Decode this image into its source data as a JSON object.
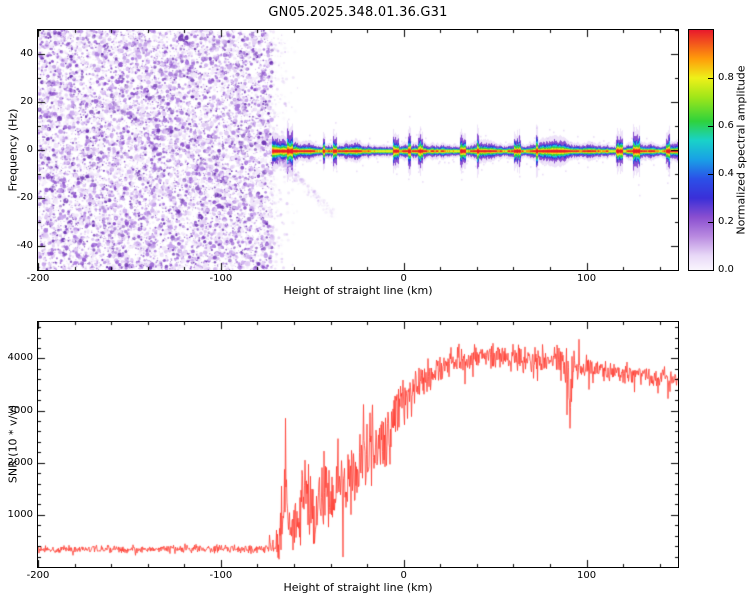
{
  "title": "GN05.2025.348.01.36.G31",
  "figure": {
    "background": "#ffffff",
    "line_color": "#ff3b30"
  },
  "chart_data": [
    {
      "type": "heatmap",
      "title": "",
      "xlabel": "Height of straight line (km)",
      "ylabel": "Frequency (Hz)",
      "xlim": [
        -200,
        150
      ],
      "ylim": [
        -50,
        50
      ],
      "xticks": [
        -200,
        -100,
        0,
        100
      ],
      "yticks": [
        -40,
        -20,
        0,
        20,
        40
      ],
      "xtick_minor": 20,
      "ytick_minor": 10,
      "grid": false,
      "noise_region": {
        "x_from_km": -200,
        "x_to_km": -72,
        "description": "dense purple speckle noise over full frequency range, no coherent signal",
        "colors": [
          "#f1e8fa",
          "#e0cbf4",
          "#c7a3ec",
          "#aa7ade",
          "#8d52cc",
          "#7038b4"
        ],
        "dot_count": 12000
      },
      "signal_band": {
        "x_start_km": -72,
        "center_freq_hz": -0.5,
        "description": "narrow horizontal carrier near 0 Hz from -72 km to 150 km; red core sheathed by orange/yellow/green/cyan/blue with purple fringe; fuzzier near onset and around 75 km; faint diagonal tail descending below the band",
        "layers": [
          {
            "name": "outer-fuzz",
            "color": "#c7a3ec",
            "halfwidth_hz": 4.5
          },
          {
            "name": "purple",
            "color": "#8a4fd0",
            "halfwidth_hz": 3.0
          },
          {
            "name": "blue",
            "color": "#2f3bd8",
            "halfwidth_hz": 2.1
          },
          {
            "name": "cyan",
            "color": "#19c8e6",
            "halfwidth_hz": 1.6
          },
          {
            "name": "green",
            "color": "#2fd23c",
            "halfwidth_hz": 1.25
          },
          {
            "name": "yellow",
            "color": "#e6f01e",
            "halfwidth_hz": 0.85
          },
          {
            "name": "orange",
            "color": "#ff8c0a",
            "halfwidth_hz": 0.55
          },
          {
            "name": "red-core",
            "color": "#e8192c",
            "halfwidth_hz": 0.35
          }
        ],
        "tail": {
          "x_from_km": -68,
          "x_to_km": -38,
          "freq_from_hz": -4,
          "freq_to_hz": -27
        }
      },
      "colorbar": {
        "label": "Normalized spectral amplitude",
        "range": [
          0,
          1
        ],
        "ticks": [
          0.0,
          0.2,
          0.4,
          0.6,
          0.8
        ],
        "stops": [
          {
            "pos": 0.0,
            "color": "#f9f5fd"
          },
          {
            "pos": 0.06,
            "color": "#e8d8f7"
          },
          {
            "pos": 0.14,
            "color": "#b98ae0"
          },
          {
            "pos": 0.22,
            "color": "#8a4fd0"
          },
          {
            "pos": 0.3,
            "color": "#3a2fd8"
          },
          {
            "pos": 0.38,
            "color": "#2b50e8"
          },
          {
            "pos": 0.46,
            "color": "#19a0e6"
          },
          {
            "pos": 0.54,
            "color": "#19d2c8"
          },
          {
            "pos": 0.62,
            "color": "#2fd23c"
          },
          {
            "pos": 0.72,
            "color": "#a0e619"
          },
          {
            "pos": 0.8,
            "color": "#eef019"
          },
          {
            "pos": 0.88,
            "color": "#ff9c0a"
          },
          {
            "pos": 1.0,
            "color": "#e8192c"
          }
        ]
      }
    },
    {
      "type": "line",
      "title": "",
      "xlabel": "Height of straight line (km)",
      "ylabel": "SNR (10 * v/v)",
      "xlim": [
        -200,
        150
      ],
      "ylim": [
        0,
        4700
      ],
      "xticks": [
        -200,
        -100,
        0,
        100
      ],
      "yticks": [
        1000,
        2000,
        3000,
        4000
      ],
      "xtick_minor": 20,
      "ytick_minor": 200,
      "grid": false,
      "color": "#ff3b30",
      "series": {
        "name": "SNR",
        "x": [
          -200,
          -120,
          -75,
          -70,
          -67,
          -65,
          -63,
          -60,
          -57,
          -54,
          -51,
          -48,
          -45,
          -42,
          -39,
          -36,
          -33,
          -30,
          -27,
          -24,
          -21,
          -18,
          -15,
          -12,
          -9,
          -6,
          -3,
          0,
          4,
          8,
          12,
          16,
          20,
          25,
          30,
          36,
          42,
          48,
          54,
          60,
          66,
          72,
          78,
          84,
          88,
          91,
          93,
          96,
          100,
          108,
          116,
          124,
          132,
          140,
          150
        ],
        "mean": [
          340,
          345,
          350,
          420,
          900,
          1500,
          800,
          700,
          1000,
          1600,
          1100,
          900,
          1300,
          1500,
          1200,
          1700,
          1500,
          1900,
          1700,
          2000,
          2100,
          2300,
          2200,
          2500,
          2600,
          2800,
          3000,
          3100,
          3300,
          3450,
          3600,
          3700,
          3800,
          3900,
          3980,
          4020,
          4050,
          4050,
          4020,
          4000,
          3980,
          3960,
          3950,
          3900,
          3800,
          3400,
          3900,
          3800,
          3820,
          3780,
          3740,
          3700,
          3660,
          3620,
          3560
        ],
        "noise_amp": [
          90,
          90,
          100,
          200,
          900,
          1000,
          600,
          500,
          700,
          900,
          700,
          600,
          800,
          900,
          700,
          900,
          800,
          900,
          800,
          850,
          850,
          900,
          850,
          850,
          800,
          750,
          700,
          650,
          550,
          500,
          450,
          400,
          350,
          300,
          280,
          260,
          260,
          280,
          280,
          290,
          300,
          300,
          320,
          380,
          500,
          1200,
          400,
          320,
          260,
          250,
          250,
          250,
          250,
          250,
          240
        ]
      }
    }
  ]
}
